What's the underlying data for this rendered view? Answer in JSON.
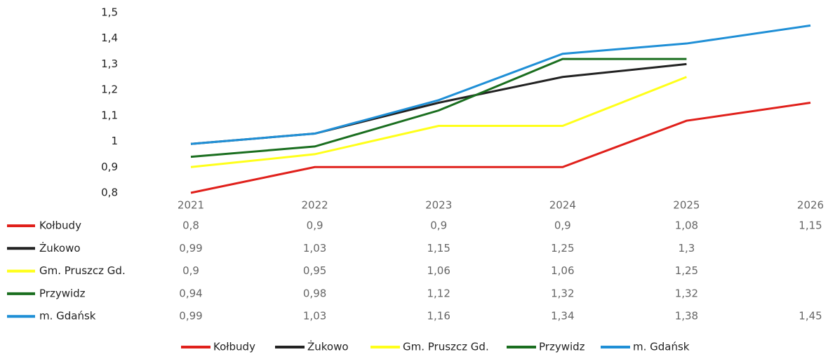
{
  "chart_data": {
    "type": "line",
    "categories": [
      "2021",
      "2022",
      "2023",
      "2024",
      "2025",
      "2026"
    ],
    "ylim": [
      0.8,
      1.5
    ],
    "yticks": [
      {
        "value": 0.8,
        "label": "0,8"
      },
      {
        "value": 0.9,
        "label": "0,9"
      },
      1,
      {
        "value": 1.1,
        "label": "1,1"
      },
      {
        "value": 1.2,
        "label": "1,2"
      },
      {
        "value": 1.3,
        "label": "1,3"
      },
      {
        "value": 1.4,
        "label": "1,4"
      },
      {
        "value": 1.5,
        "label": "1,5"
      }
    ],
    "grid": false,
    "legend": "bottom",
    "series": [
      {
        "name": "Kołbudy",
        "color": "#e0201b",
        "values": [
          0.8,
          0.9,
          0.9,
          0.9,
          1.08,
          1.15
        ],
        "value_labels": [
          "0,8",
          "0,9",
          "0,9",
          "0,9",
          "1,08",
          "1,15"
        ]
      },
      {
        "name": "Żukowo",
        "color": "#222222",
        "values": [
          0.99,
          1.03,
          1.15,
          1.25,
          1.3,
          null
        ],
        "value_labels": [
          "0,99",
          "1,03",
          "1,15",
          "1,25",
          "1,3",
          null
        ]
      },
      {
        "name": "Gm. Pruszcz Gd.",
        "color": "#ffff1a",
        "values": [
          0.9,
          0.95,
          1.06,
          1.06,
          1.25,
          null
        ],
        "value_labels": [
          "0,9",
          "0,95",
          "1,06",
          "1,06",
          "1,25",
          null
        ]
      },
      {
        "name": "Przywidz",
        "color": "#1a6e1f",
        "values": [
          0.94,
          0.98,
          1.12,
          1.32,
          1.32,
          null
        ],
        "value_labels": [
          "0,94",
          "0,98",
          "1,12",
          "1,32",
          "1,32",
          null
        ]
      },
      {
        "name": "m. Gdańsk",
        "color": "#1f8fd6",
        "values": [
          0.99,
          1.03,
          1.16,
          1.34,
          1.38,
          1.45
        ],
        "value_labels": [
          "0,99",
          "1,03",
          "1,16",
          "1,34",
          "1,38",
          "1,45"
        ]
      }
    ]
  }
}
